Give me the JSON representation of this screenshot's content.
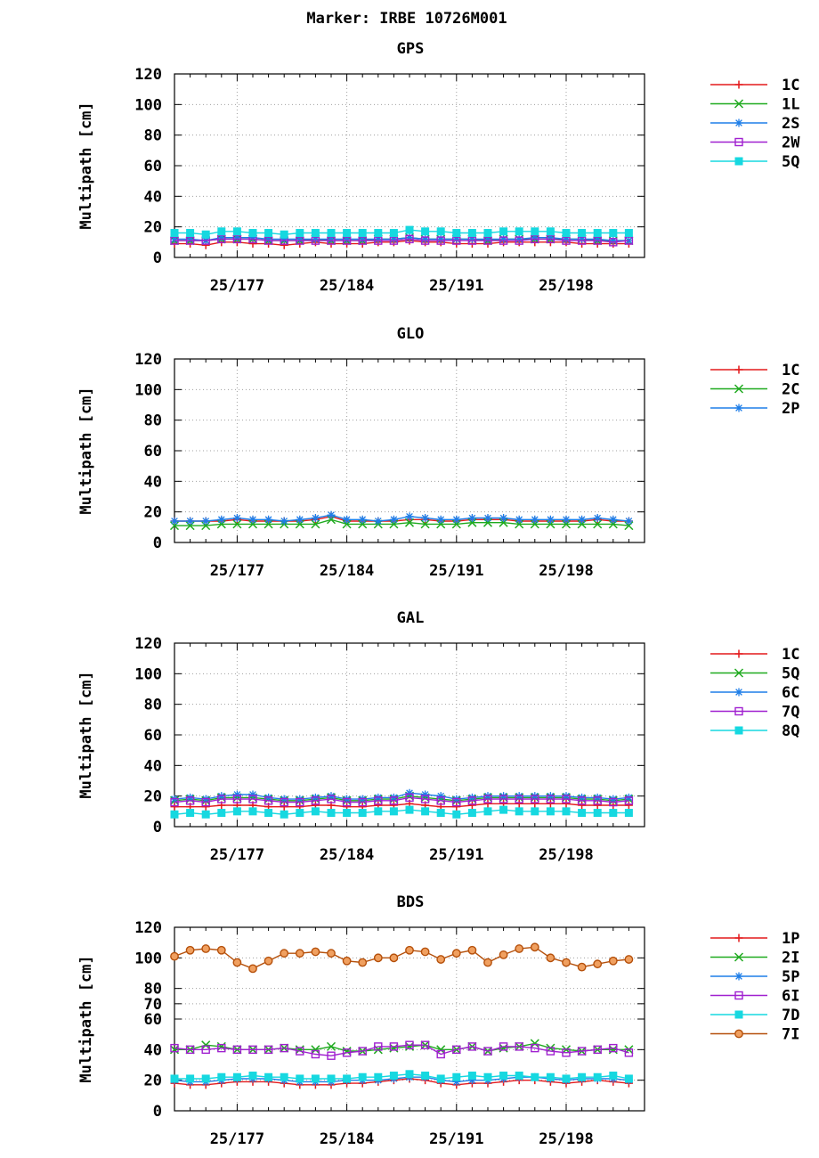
{
  "figure_title": "Marker: IRBE 10726M001",
  "chart_data": [
    {
      "type": "line",
      "title": "GPS",
      "ylabel": "Multipath [cm]",
      "ylim": [
        0,
        120
      ],
      "yticks": [
        0,
        20,
        40,
        60,
        80,
        100,
        120
      ],
      "xlim": [
        173,
        203
      ],
      "xticks": [
        177,
        184,
        191,
        198
      ],
      "xtick_labels": [
        "25/177",
        "25/184",
        "25/191",
        "25/198"
      ],
      "x": [
        173,
        174,
        175,
        176,
        177,
        178,
        179,
        180,
        181,
        182,
        183,
        184,
        185,
        186,
        187,
        188,
        189,
        190,
        191,
        192,
        193,
        194,
        195,
        196,
        197,
        198,
        199,
        200,
        201,
        202
      ],
      "grid": true,
      "legend_position": "right",
      "series": [
        {
          "name": "1C",
          "color": "#e41a1c",
          "marker": "plus",
          "values": [
            9,
            9,
            8,
            10,
            10,
            9,
            9,
            8,
            9,
            10,
            9,
            9,
            9,
            10,
            10,
            11,
            10,
            10,
            9,
            9,
            9,
            10,
            10,
            10,
            10,
            10,
            9,
            9,
            9,
            9
          ]
        },
        {
          "name": "1L",
          "color": "#1faa1f",
          "marker": "x",
          "values": [
            11,
            11,
            11,
            12,
            12,
            12,
            11,
            11,
            11,
            12,
            11,
            11,
            11,
            12,
            12,
            13,
            12,
            12,
            12,
            12,
            11,
            12,
            12,
            12,
            12,
            12,
            12,
            11,
            11,
            11
          ]
        },
        {
          "name": "2S",
          "color": "#1e7ee8",
          "marker": "star",
          "values": [
            12,
            12,
            11,
            13,
            13,
            13,
            12,
            12,
            12,
            12,
            12,
            12,
            12,
            12,
            12,
            13,
            12,
            12,
            12,
            12,
            12,
            12,
            12,
            13,
            13,
            12,
            12,
            12,
            11,
            11
          ]
        },
        {
          "name": "2W",
          "color": "#a020d0",
          "marker": "square-open",
          "values": [
            11,
            11,
            11,
            12,
            12,
            12,
            11,
            11,
            11,
            11,
            11,
            11,
            11,
            11,
            11,
            12,
            11,
            11,
            11,
            11,
            11,
            11,
            11,
            12,
            12,
            11,
            11,
            11,
            10,
            11
          ]
        },
        {
          "name": "5Q",
          "color": "#16d8e0",
          "marker": "square-filled",
          "values": [
            16,
            16,
            15,
            17,
            17,
            16,
            16,
            15,
            16,
            16,
            16,
            16,
            16,
            16,
            16,
            18,
            17,
            17,
            16,
            16,
            16,
            17,
            17,
            17,
            17,
            16,
            16,
            16,
            16,
            16
          ]
        }
      ]
    },
    {
      "type": "line",
      "title": "GLO",
      "ylabel": "Multipath [cm]",
      "ylim": [
        0,
        120
      ],
      "yticks": [
        0,
        20,
        40,
        60,
        80,
        100,
        120
      ],
      "xlim": [
        173,
        203
      ],
      "xticks": [
        177,
        184,
        191,
        198
      ],
      "xtick_labels": [
        "25/177",
        "25/184",
        "25/191",
        "25/198"
      ],
      "x": [
        173,
        174,
        175,
        176,
        177,
        178,
        179,
        180,
        181,
        182,
        183,
        184,
        185,
        186,
        187,
        188,
        189,
        190,
        191,
        192,
        193,
        194,
        195,
        196,
        197,
        198,
        199,
        200,
        201,
        202
      ],
      "grid": true,
      "legend_position": "right",
      "series": [
        {
          "name": "1C",
          "color": "#e41a1c",
          "marker": "plus",
          "values": [
            14,
            14,
            14,
            14,
            15,
            14,
            14,
            14,
            14,
            15,
            17,
            14,
            14,
            14,
            14,
            15,
            15,
            14,
            14,
            15,
            15,
            15,
            14,
            14,
            14,
            14,
            14,
            15,
            14,
            14
          ]
        },
        {
          "name": "2C",
          "color": "#1faa1f",
          "marker": "x",
          "values": [
            11,
            11,
            11,
            12,
            12,
            12,
            12,
            12,
            12,
            12,
            15,
            12,
            12,
            12,
            12,
            13,
            12,
            12,
            12,
            13,
            13,
            13,
            12,
            12,
            12,
            12,
            12,
            12,
            12,
            11
          ]
        },
        {
          "name": "2P",
          "color": "#1e7ee8",
          "marker": "star",
          "values": [
            14,
            14,
            14,
            15,
            16,
            15,
            15,
            14,
            15,
            16,
            18,
            15,
            15,
            14,
            15,
            17,
            16,
            15,
            15,
            16,
            16,
            16,
            15,
            15,
            15,
            15,
            15,
            16,
            15,
            14
          ]
        }
      ]
    },
    {
      "type": "line",
      "title": "GAL",
      "ylabel": "Multipath [cm]",
      "ylim": [
        0,
        120
      ],
      "yticks": [
        0,
        20,
        40,
        60,
        80,
        100,
        120
      ],
      "xlim": [
        173,
        203
      ],
      "xticks": [
        177,
        184,
        191,
        198
      ],
      "xtick_labels": [
        "25/177",
        "25/184",
        "25/191",
        "25/198"
      ],
      "x": [
        173,
        174,
        175,
        176,
        177,
        178,
        179,
        180,
        181,
        182,
        183,
        184,
        185,
        186,
        187,
        188,
        189,
        190,
        191,
        192,
        193,
        194,
        195,
        196,
        197,
        198,
        199,
        200,
        201,
        202
      ],
      "grid": true,
      "legend_position": "right",
      "series": [
        {
          "name": "1C",
          "color": "#e41a1c",
          "marker": "plus",
          "values": [
            13,
            13,
            13,
            14,
            14,
            14,
            13,
            13,
            13,
            14,
            14,
            13,
            13,
            14,
            14,
            15,
            14,
            13,
            13,
            14,
            15,
            15,
            15,
            15,
            15,
            15,
            14,
            14,
            14,
            14
          ]
        },
        {
          "name": "5Q",
          "color": "#1faa1f",
          "marker": "x",
          "values": [
            17,
            18,
            17,
            19,
            19,
            19,
            18,
            17,
            17,
            18,
            19,
            17,
            17,
            18,
            18,
            20,
            19,
            18,
            17,
            18,
            19,
            19,
            19,
            19,
            19,
            19,
            18,
            18,
            17,
            18
          ]
        },
        {
          "name": "6C",
          "color": "#1e7ee8",
          "marker": "star",
          "values": [
            18,
            19,
            18,
            20,
            21,
            21,
            19,
            18,
            18,
            19,
            20,
            18,
            18,
            19,
            19,
            22,
            21,
            20,
            18,
            19,
            20,
            20,
            20,
            20,
            20,
            20,
            19,
            19,
            18,
            19
          ]
        },
        {
          "name": "7Q",
          "color": "#a020d0",
          "marker": "square-open",
          "values": [
            16,
            17,
            16,
            18,
            18,
            18,
            17,
            16,
            16,
            17,
            18,
            16,
            16,
            17,
            17,
            19,
            18,
            17,
            16,
            17,
            18,
            18,
            18,
            18,
            18,
            18,
            17,
            17,
            16,
            17
          ]
        },
        {
          "name": "8Q",
          "color": "#16d8e0",
          "marker": "square-filled",
          "values": [
            8,
            9,
            8,
            9,
            10,
            10,
            9,
            8,
            9,
            10,
            9,
            9,
            9,
            10,
            10,
            11,
            10,
            9,
            8,
            9,
            10,
            11,
            10,
            10,
            10,
            10,
            9,
            9,
            9,
            9
          ]
        }
      ]
    },
    {
      "type": "line",
      "title": "BDS",
      "ylabel": "Multipath [cm]",
      "ylim": [
        0,
        120
      ],
      "yticks": [
        0,
        20,
        40,
        60,
        70,
        80,
        100,
        120
      ],
      "ytick_labels": [
        "0",
        "20",
        "40",
        "60",
        "70",
        "80",
        "100",
        "120"
      ],
      "xlim": [
        173,
        203
      ],
      "xticks": [
        177,
        184,
        191,
        198
      ],
      "xtick_labels": [
        "25/177",
        "25/184",
        "25/191",
        "25/198"
      ],
      "x": [
        173,
        174,
        175,
        176,
        177,
        178,
        179,
        180,
        181,
        182,
        183,
        184,
        185,
        186,
        187,
        188,
        189,
        190,
        191,
        192,
        193,
        194,
        195,
        196,
        197,
        198,
        199,
        200,
        201,
        202
      ],
      "grid": true,
      "legend_position": "right",
      "series": [
        {
          "name": "1P",
          "color": "#e41a1c",
          "marker": "plus",
          "values": [
            18,
            17,
            17,
            18,
            19,
            19,
            19,
            18,
            17,
            17,
            17,
            18,
            18,
            19,
            20,
            21,
            20,
            18,
            17,
            18,
            18,
            19,
            20,
            20,
            19,
            18,
            19,
            20,
            19,
            18
          ]
        },
        {
          "name": "2I",
          "color": "#1faa1f",
          "marker": "x",
          "values": [
            40,
            40,
            43,
            42,
            40,
            40,
            40,
            41,
            40,
            40,
            42,
            39,
            39,
            40,
            41,
            42,
            43,
            40,
            40,
            42,
            39,
            41,
            42,
            44,
            41,
            40,
            39,
            40,
            40,
            40
          ]
        },
        {
          "name": "5P",
          "color": "#1e7ee8",
          "marker": "star",
          "values": [
            20,
            19,
            19,
            20,
            21,
            21,
            21,
            20,
            19,
            19,
            19,
            20,
            20,
            20,
            21,
            22,
            22,
            20,
            19,
            20,
            20,
            21,
            22,
            22,
            21,
            20,
            21,
            21,
            21,
            20
          ]
        },
        {
          "name": "6I",
          "color": "#a020d0",
          "marker": "square-open",
          "values": [
            41,
            40,
            40,
            41,
            40,
            40,
            40,
            41,
            39,
            37,
            36,
            38,
            39,
            42,
            42,
            43,
            43,
            37,
            40,
            42,
            39,
            42,
            42,
            41,
            39,
            38,
            39,
            40,
            41,
            38
          ]
        },
        {
          "name": "7D",
          "color": "#16d8e0",
          "marker": "square-filled",
          "values": [
            21,
            21,
            21,
            22,
            22,
            23,
            22,
            22,
            21,
            21,
            21,
            21,
            22,
            22,
            23,
            24,
            23,
            21,
            22,
            23,
            22,
            23,
            23,
            22,
            22,
            21,
            22,
            22,
            23,
            21
          ]
        },
        {
          "name": "7I",
          "color": "#b5500b",
          "marker": "circle",
          "values": [
            101,
            105,
            106,
            105,
            97,
            93,
            98,
            103,
            103,
            104,
            103,
            98,
            97,
            100,
            100,
            105,
            104,
            99,
            103,
            105,
            97,
            102,
            106,
            107,
            100,
            97,
            94,
            96,
            98,
            99
          ]
        }
      ]
    }
  ]
}
